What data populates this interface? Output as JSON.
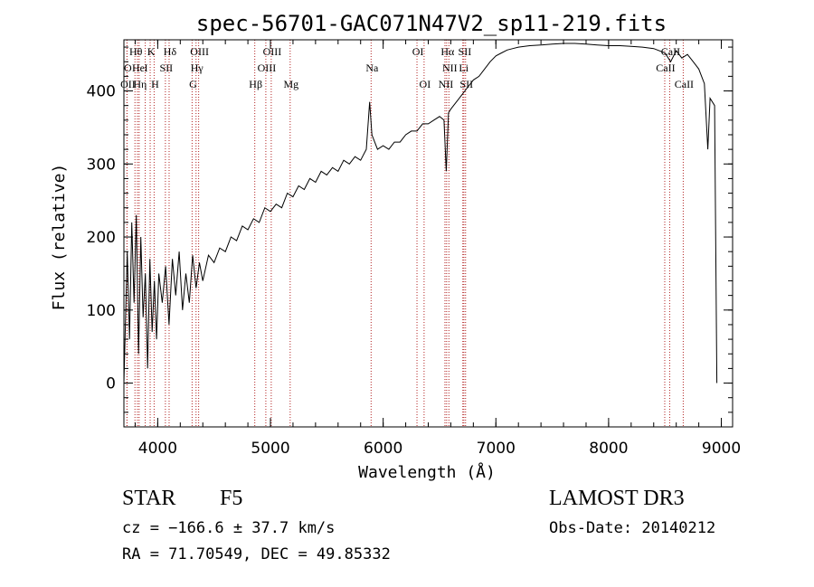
{
  "chart_data": {
    "type": "line",
    "title": "spec-56701-GAC071N47V2_sp11-219.fits",
    "xlabel": "Wavelength (Å)",
    "ylabel": "Flux (relative)",
    "xlim": [
      3700,
      9100
    ],
    "ylim": [
      -60,
      470
    ],
    "xticks": [
      4000,
      5000,
      6000,
      7000,
      8000,
      9000
    ],
    "yticks": [
      0,
      100,
      200,
      300,
      400
    ],
    "series": [
      {
        "name": "flux",
        "points": [
          [
            3700,
            0
          ],
          [
            3730,
            180
          ],
          [
            3750,
            60
          ],
          [
            3770,
            220
          ],
          [
            3790,
            110
          ],
          [
            3810,
            230
          ],
          [
            3830,
            40
          ],
          [
            3850,
            200
          ],
          [
            3870,
            90
          ],
          [
            3890,
            150
          ],
          [
            3910,
            20
          ],
          [
            3930,
            170
          ],
          [
            3950,
            70
          ],
          [
            3970,
            140
          ],
          [
            3990,
            60
          ],
          [
            4010,
            150
          ],
          [
            4040,
            110
          ],
          [
            4070,
            160
          ],
          [
            4100,
            80
          ],
          [
            4130,
            170
          ],
          [
            4160,
            120
          ],
          [
            4190,
            180
          ],
          [
            4220,
            100
          ],
          [
            4250,
            150
          ],
          [
            4280,
            110
          ],
          [
            4310,
            175
          ],
          [
            4340,
            130
          ],
          [
            4370,
            165
          ],
          [
            4400,
            140
          ],
          [
            4450,
            175
          ],
          [
            4500,
            165
          ],
          [
            4550,
            185
          ],
          [
            4600,
            180
          ],
          [
            4650,
            200
          ],
          [
            4700,
            195
          ],
          [
            4750,
            215
          ],
          [
            4800,
            210
          ],
          [
            4850,
            225
          ],
          [
            4900,
            220
          ],
          [
            4950,
            240
          ],
          [
            5000,
            235
          ],
          [
            5050,
            245
          ],
          [
            5100,
            240
          ],
          [
            5150,
            260
          ],
          [
            5200,
            255
          ],
          [
            5250,
            270
          ],
          [
            5300,
            265
          ],
          [
            5350,
            280
          ],
          [
            5400,
            275
          ],
          [
            5450,
            290
          ],
          [
            5500,
            285
          ],
          [
            5550,
            295
          ],
          [
            5600,
            290
          ],
          [
            5650,
            305
          ],
          [
            5700,
            300
          ],
          [
            5750,
            310
          ],
          [
            5800,
            305
          ],
          [
            5850,
            320
          ],
          [
            5880,
            385
          ],
          [
            5900,
            340
          ],
          [
            5950,
            320
          ],
          [
            6000,
            325
          ],
          [
            6050,
            320
          ],
          [
            6100,
            330
          ],
          [
            6150,
            330
          ],
          [
            6200,
            340
          ],
          [
            6250,
            345
          ],
          [
            6300,
            345
          ],
          [
            6350,
            355
          ],
          [
            6400,
            355
          ],
          [
            6450,
            360
          ],
          [
            6500,
            365
          ],
          [
            6540,
            360
          ],
          [
            6560,
            290
          ],
          [
            6580,
            370
          ],
          [
            6600,
            375
          ],
          [
            6650,
            385
          ],
          [
            6700,
            395
          ],
          [
            6750,
            405
          ],
          [
            6800,
            415
          ],
          [
            6850,
            420
          ],
          [
            6900,
            430
          ],
          [
            6950,
            440
          ],
          [
            7000,
            448
          ],
          [
            7050,
            452
          ],
          [
            7100,
            456
          ],
          [
            7150,
            458
          ],
          [
            7200,
            460
          ],
          [
            7300,
            462
          ],
          [
            7400,
            463
          ],
          [
            7500,
            464
          ],
          [
            7600,
            465
          ],
          [
            7700,
            465
          ],
          [
            7800,
            464
          ],
          [
            7900,
            463
          ],
          [
            8000,
            462
          ],
          [
            8100,
            462
          ],
          [
            8200,
            461
          ],
          [
            8300,
            460
          ],
          [
            8400,
            458
          ],
          [
            8500,
            452
          ],
          [
            8550,
            440
          ],
          [
            8600,
            455
          ],
          [
            8650,
            445
          ],
          [
            8700,
            450
          ],
          [
            8750,
            440
          ],
          [
            8800,
            430
          ],
          [
            8850,
            410
          ],
          [
            8880,
            320
          ],
          [
            8900,
            390
          ],
          [
            8940,
            380
          ],
          [
            8960,
            0
          ]
        ]
      }
    ],
    "lines": [
      {
        "label": "Hθ",
        "wavelength": 3798,
        "row": 0
      },
      {
        "label": "O",
        "wavelength": 3727,
        "row": 1
      },
      {
        "label": "OII",
        "wavelength": 3728,
        "row": 2
      },
      {
        "label": "He",
        "wavelength": 3820,
        "row": 1
      },
      {
        "label": "Hη",
        "wavelength": 3835,
        "row": 2
      },
      {
        "label": "K",
        "wavelength": 3933,
        "row": 0
      },
      {
        "label": "H",
        "wavelength": 3968,
        "row": 2
      },
      {
        "label": "I",
        "wavelength": 3889,
        "row": 1
      },
      {
        "label": "SII",
        "wavelength": 4068,
        "row": 1
      },
      {
        "label": "Hδ",
        "wavelength": 4101,
        "row": 0
      },
      {
        "label": "OIII",
        "wavelength": 4363,
        "row": 0
      },
      {
        "label": "Hγ",
        "wavelength": 4340,
        "row": 1
      },
      {
        "label": "G",
        "wavelength": 4305,
        "row": 2
      },
      {
        "label": "Hβ",
        "wavelength": 4861,
        "row": 2
      },
      {
        "label": "OIII",
        "wavelength": 4959,
        "row": 1
      },
      {
        "label": "OIII",
        "wavelength": 5007,
        "row": 0
      },
      {
        "label": "Mg",
        "wavelength": 5175,
        "row": 2
      },
      {
        "label": "Na",
        "wavelength": 5893,
        "row": 1
      },
      {
        "label": "OI",
        "wavelength": 6300,
        "row": 0
      },
      {
        "label": "OI",
        "wavelength": 6363,
        "row": 2
      },
      {
        "label": "NII",
        "wavelength": 6548,
        "row": 2
      },
      {
        "label": "Hα",
        "wavelength": 6563,
        "row": 0
      },
      {
        "label": "NII",
        "wavelength": 6583,
        "row": 1
      },
      {
        "label": "SII",
        "wavelength": 6716,
        "row": 0
      },
      {
        "label": "SII",
        "wavelength": 6731,
        "row": 2
      },
      {
        "label": "Li",
        "wavelength": 6707,
        "row": 1
      },
      {
        "label": "CaII",
        "wavelength": 8498,
        "row": 1
      },
      {
        "label": "CaII",
        "wavelength": 8542,
        "row": 0
      },
      {
        "label": "CaII",
        "wavelength": 8662,
        "row": 2
      }
    ]
  },
  "info": {
    "class_label": "STAR",
    "subclass": "F5",
    "survey": "LAMOST DR3",
    "cz": "cz = −166.6 ± 37.7 km/s",
    "obs_date": "Obs-Date: 20140212",
    "coords": "RA =  71.70549, DEC =  49.85332"
  },
  "colors": {
    "spectrum": "#000000",
    "line_markers": "#b22222",
    "axis": "#000000"
  }
}
